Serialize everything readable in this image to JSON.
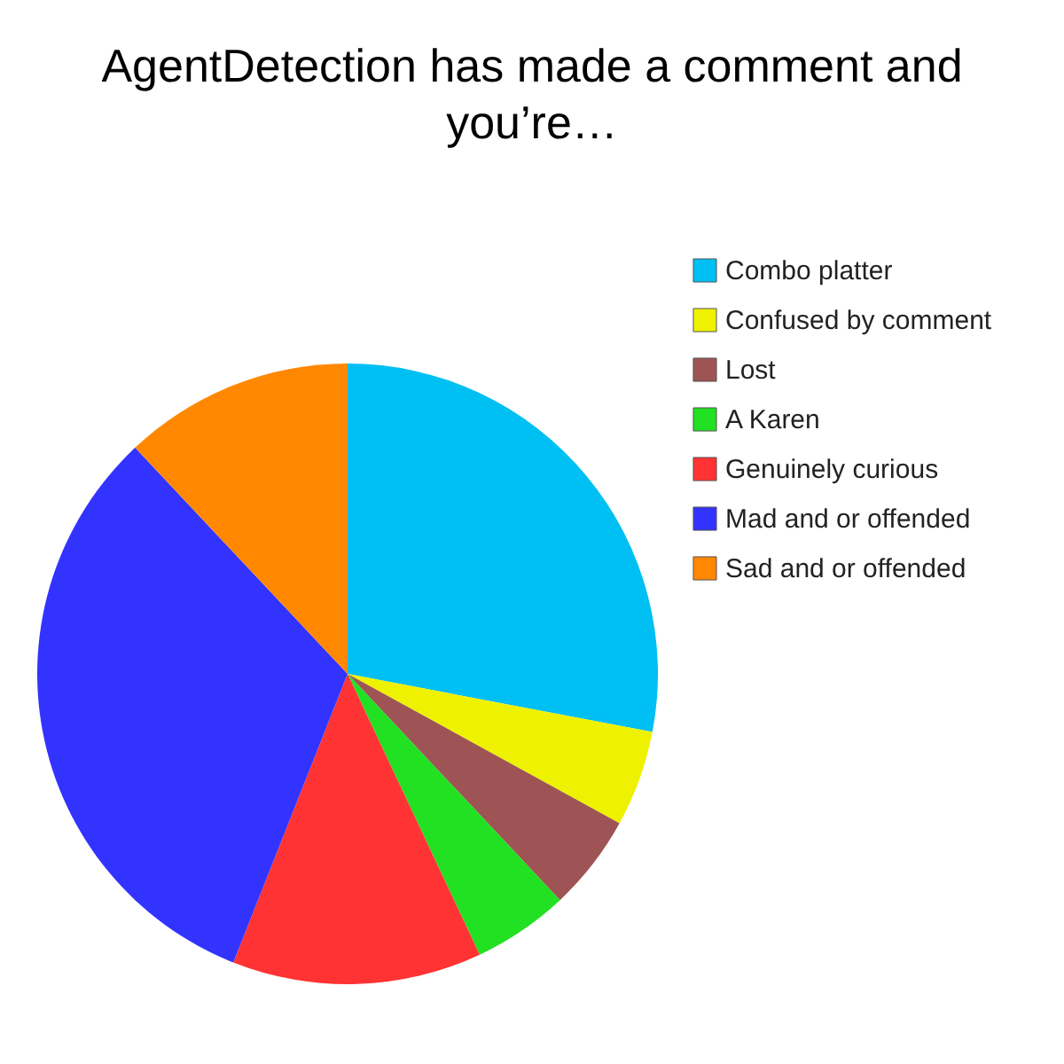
{
  "chart_data": {
    "type": "pie",
    "title": "AgentDetection has made a comment and you’re…",
    "categories": [
      "Combo platter",
      "Confused by comment",
      "Lost",
      "A Karen",
      "Genuinely curious",
      "Mad and or offended",
      "Sad and or offended"
    ],
    "values": [
      28,
      5,
      5,
      5,
      13,
      32,
      12
    ],
    "colors": [
      "#00bff2",
      "#eef200",
      "#9e5454",
      "#22e022",
      "#ff3333",
      "#3333ff",
      "#ff8800"
    ],
    "legend": "top right"
  }
}
